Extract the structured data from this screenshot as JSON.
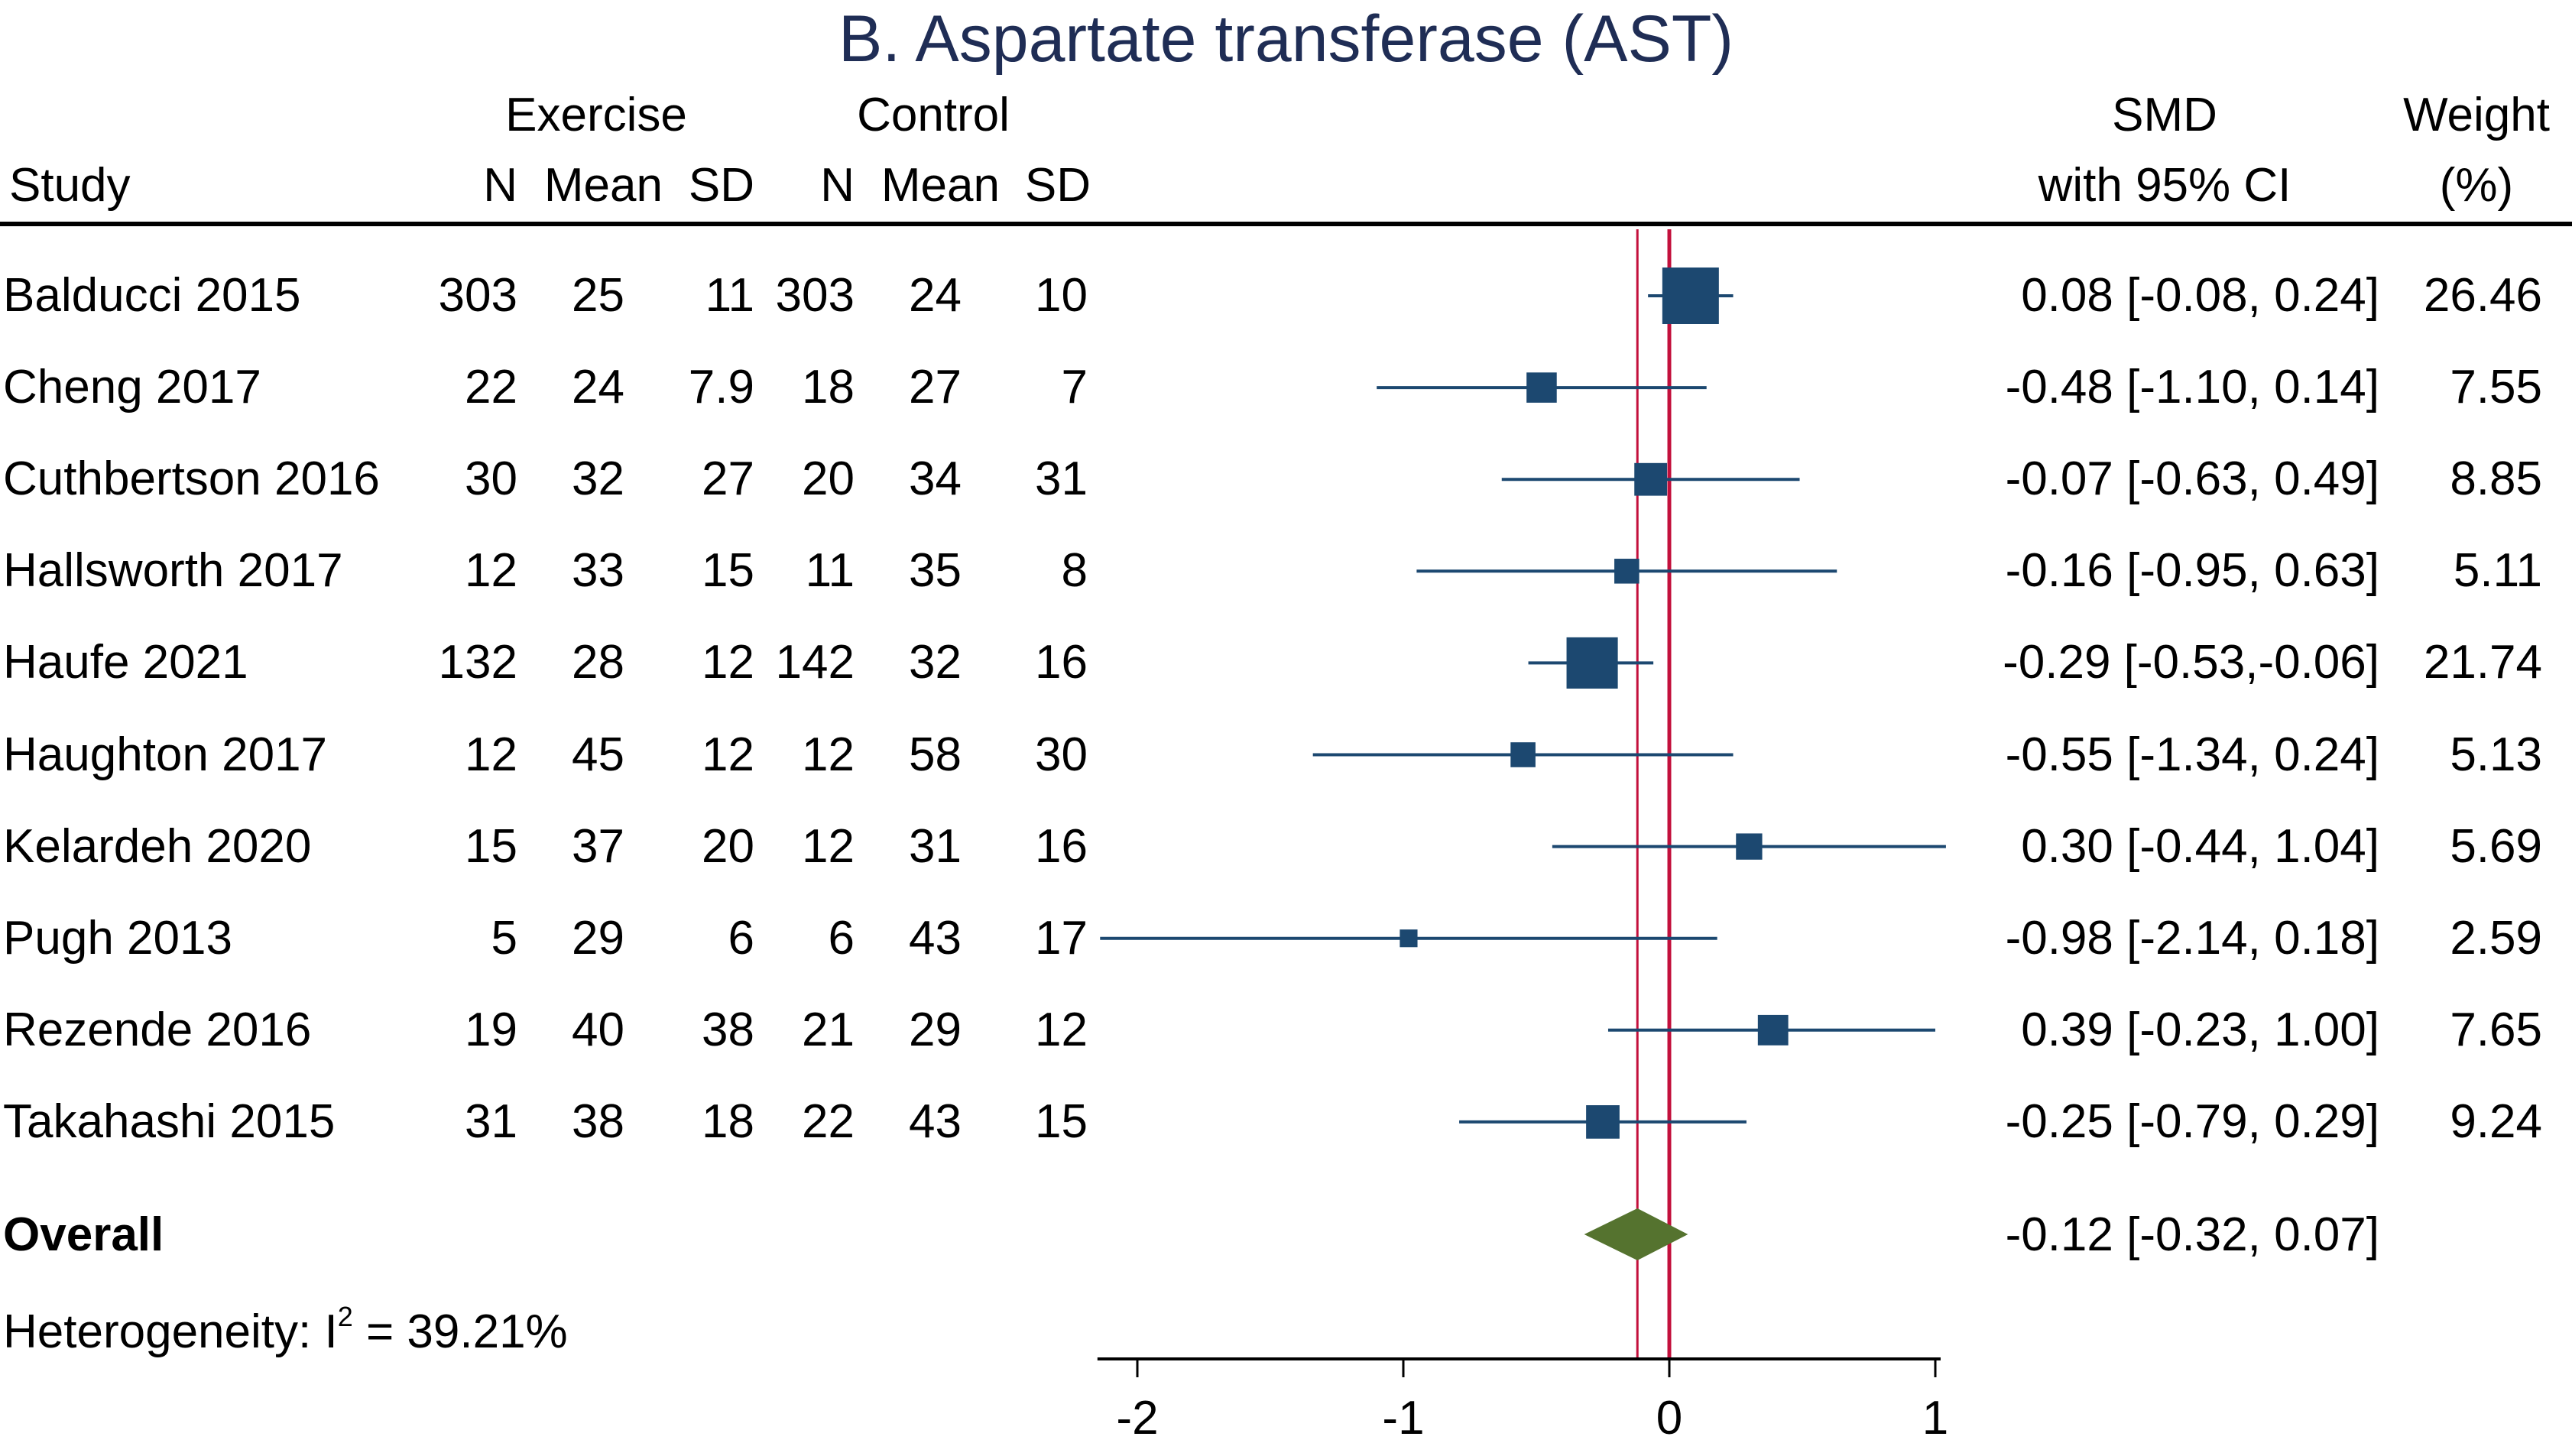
{
  "chart_data": {
    "type": "forest",
    "title": "B. Aspartate transferase (AST)",
    "group_headers": {
      "exercise": "Exercise",
      "control": "Control"
    },
    "columns": {
      "study": "Study",
      "n": "N",
      "mean": "Mean",
      "sd": "SD",
      "smd_line1": "SMD",
      "smd_line2": "with 95% CI",
      "weight_line1": "Weight",
      "weight_line2": "(%)"
    },
    "studies": [
      {
        "study": "Balducci 2015",
        "ex_n": "303",
        "ex_mean": "25",
        "ex_sd": "11",
        "ct_n": "303",
        "ct_mean": "24",
        "ct_sd": "10",
        "smd": 0.08,
        "lo": -0.08,
        "hi": 0.24,
        "ci_text": "0.08 [-0.08,  0.24]",
        "weight": 26.46,
        "weight_text": "26.46"
      },
      {
        "study": "Cheng 2017",
        "ex_n": "22",
        "ex_mean": "24",
        "ex_sd": "7.9",
        "ct_n": "18",
        "ct_mean": "27",
        "ct_sd": "7",
        "smd": -0.48,
        "lo": -1.1,
        "hi": 0.14,
        "ci_text": "-0.48 [-1.10,  0.14]",
        "weight": 7.55,
        "weight_text": "7.55"
      },
      {
        "study": "Cuthbertson 2016",
        "ex_n": "30",
        "ex_mean": "32",
        "ex_sd": "27",
        "ct_n": "20",
        "ct_mean": "34",
        "ct_sd": "31",
        "smd": -0.07,
        "lo": -0.63,
        "hi": 0.49,
        "ci_text": "-0.07 [-0.63,  0.49]",
        "weight": 8.85,
        "weight_text": "8.85"
      },
      {
        "study": "Hallsworth 2017",
        "ex_n": "12",
        "ex_mean": "33",
        "ex_sd": "15",
        "ct_n": "11",
        "ct_mean": "35",
        "ct_sd": "8",
        "smd": -0.16,
        "lo": -0.95,
        "hi": 0.63,
        "ci_text": "-0.16 [-0.95,  0.63]",
        "weight": 5.11,
        "weight_text": "5.11"
      },
      {
        "study": "Haufe 2021",
        "ex_n": "132",
        "ex_mean": "28",
        "ex_sd": "12",
        "ct_n": "142",
        "ct_mean": "32",
        "ct_sd": "16",
        "smd": -0.29,
        "lo": -0.53,
        "hi": -0.06,
        "ci_text": "-0.29 [-0.53,-0.06]",
        "weight": 21.74,
        "weight_text": "21.74"
      },
      {
        "study": "Haughton 2017",
        "ex_n": "12",
        "ex_mean": "45",
        "ex_sd": "12",
        "ct_n": "12",
        "ct_mean": "58",
        "ct_sd": "30",
        "smd": -0.55,
        "lo": -1.34,
        "hi": 0.24,
        "ci_text": "-0.55 [-1.34,  0.24]",
        "weight": 5.13,
        "weight_text": "5.13"
      },
      {
        "study": "Kelardeh 2020",
        "ex_n": "15",
        "ex_mean": "37",
        "ex_sd": "20",
        "ct_n": "12",
        "ct_mean": "31",
        "ct_sd": "16",
        "smd": 0.3,
        "lo": -0.44,
        "hi": 1.04,
        "ci_text": "0.30 [-0.44,  1.04]",
        "weight": 5.69,
        "weight_text": "5.69"
      },
      {
        "study": "Pugh 2013",
        "ex_n": "5",
        "ex_mean": "29",
        "ex_sd": "6",
        "ct_n": "6",
        "ct_mean": "43",
        "ct_sd": "17",
        "smd": -0.98,
        "lo": -2.14,
        "hi": 0.18,
        "ci_text": "-0.98 [-2.14,  0.18]",
        "weight": 2.59,
        "weight_text": "2.59"
      },
      {
        "study": "Rezende 2016",
        "ex_n": "19",
        "ex_mean": "40",
        "ex_sd": "38",
        "ct_n": "21",
        "ct_mean": "29",
        "ct_sd": "12",
        "smd": 0.39,
        "lo": -0.23,
        "hi": 1.0,
        "ci_text": "0.39 [-0.23,  1.00]",
        "weight": 7.65,
        "weight_text": "7.65"
      },
      {
        "study": "Takahashi 2015",
        "ex_n": "31",
        "ex_mean": "38",
        "ex_sd": "18",
        "ct_n": "22",
        "ct_mean": "43",
        "ct_sd": "15",
        "smd": -0.25,
        "lo": -0.79,
        "hi": 0.29,
        "ci_text": "-0.25 [-0.79,  0.29]",
        "weight": 9.24,
        "weight_text": "9.24"
      }
    ],
    "overall": {
      "label": "Overall",
      "smd": -0.12,
      "lo": -0.32,
      "hi": 0.07,
      "ci_text": "-0.12 [-0.32,  0.07]"
    },
    "heterogeneity": {
      "prefix": "Heterogeneity: I",
      "sup": "2",
      "suffix": " = 39.21%"
    },
    "x_axis": {
      "ticks": [
        -2,
        -1,
        0,
        1
      ],
      "tick_labels": [
        "-2",
        "-1",
        "0",
        "1"
      ],
      "range": [
        -2.15,
        1.02
      ]
    },
    "reference_lines": {
      "null": 0,
      "overall": -0.12
    },
    "colors": {
      "title": "#1f2d55",
      "marker": "#1c4870",
      "ci_line": "#1c4870",
      "reference": "#c3103c",
      "diamond": "#55732f"
    }
  }
}
